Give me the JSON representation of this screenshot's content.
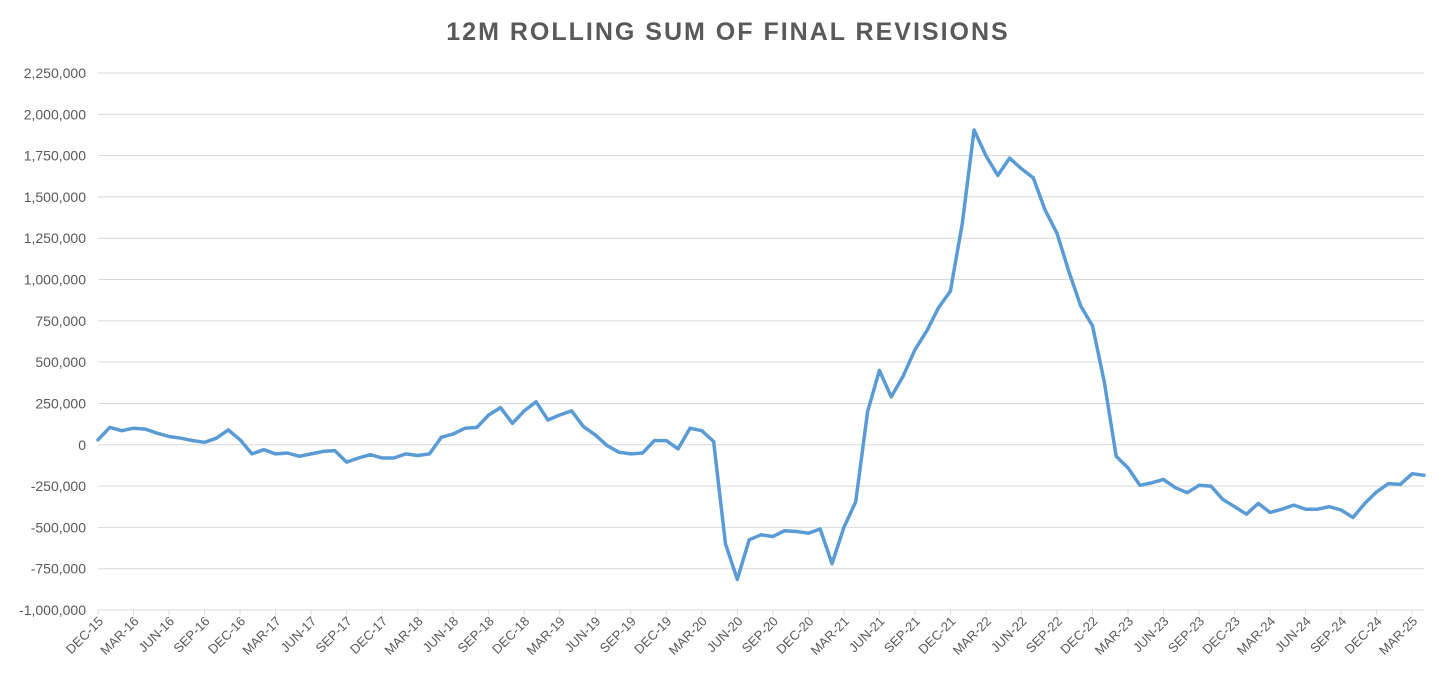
{
  "chart_data": {
    "type": "line",
    "title": "12M ROLLING SUM OF FINAL REVISIONS",
    "xlabel": "",
    "ylabel": "",
    "ylim": [
      -1000000,
      2250000
    ],
    "yticks": [
      -1000000,
      -750000,
      -500000,
      -250000,
      0,
      250000,
      500000,
      750000,
      1000000,
      1250000,
      1500000,
      1750000,
      2000000,
      2250000
    ],
    "ytick_labels": [
      "-1,000,000",
      "-750,000",
      "-500,000",
      "-250,000",
      "0",
      "250,000",
      "500,000",
      "750,000",
      "1,000,000",
      "1,250,000",
      "1,500,000",
      "1,750,000",
      "2,000,000",
      "2,250,000"
    ],
    "x_tick_labels": [
      "DEC-15",
      "MAR-16",
      "JUN-16",
      "SEP-16",
      "DEC-16",
      "MAR-17",
      "JUN-17",
      "SEP-17",
      "DEC-17",
      "MAR-18",
      "JUN-18",
      "SEP-18",
      "DEC-18",
      "MAR-19",
      "JUN-19",
      "SEP-19",
      "DEC-19",
      "MAR-20",
      "JUN-20",
      "SEP-20",
      "DEC-20",
      "MAR-21",
      "JUN-21",
      "SEP-21",
      "DEC-21",
      "MAR-22",
      "JUN-22",
      "SEP-22",
      "DEC-22",
      "MAR-23",
      "JUN-23",
      "SEP-23",
      "DEC-23",
      "MAR-24",
      "JUN-24",
      "SEP-24",
      "DEC-24",
      "MAR-25"
    ],
    "grid": true,
    "legend": "none",
    "line_color": "#5b9bd5",
    "start_month": "DEC-15",
    "series": [
      {
        "values": [
          30000,
          105000,
          85000,
          100000,
          95000,
          70000,
          50000,
          40000,
          25000,
          15000,
          40000,
          90000,
          30000,
          -55000,
          -30000,
          -55000,
          -50000,
          -70000,
          -55000,
          -40000,
          -35000,
          -105000,
          -80000,
          -60000,
          -80000,
          -80000,
          -55000,
          -65000,
          -55000,
          45000,
          65000,
          100000,
          105000,
          180000,
          225000,
          130000,
          205000,
          260000,
          150000,
          180000,
          205000,
          110000,
          60000,
          -5000,
          -45000,
          -55000,
          -50000,
          25000,
          25000,
          -25000,
          100000,
          85000,
          20000,
          -600000,
          -815000,
          -575000,
          -545000,
          -555000,
          -520000,
          -525000,
          -535000,
          -510000,
          -720000,
          -500000,
          -345000,
          200000,
          450000,
          290000,
          415000,
          575000,
          690000,
          830000,
          930000,
          1340000,
          1905000,
          1750000,
          1630000,
          1735000,
          1670000,
          1615000,
          1420000,
          1280000,
          1050000,
          840000,
          720000,
          380000,
          -70000,
          -140000,
          -245000,
          -230000,
          -210000,
          -260000,
          -290000,
          -245000,
          -250000,
          -330000,
          -375000,
          -420000,
          -355000,
          -410000,
          -390000,
          -365000,
          -390000,
          -390000,
          -375000,
          -395000,
          -440000,
          -355000,
          -285000,
          -235000,
          -240000,
          -175000,
          -185000
        ]
      }
    ]
  }
}
